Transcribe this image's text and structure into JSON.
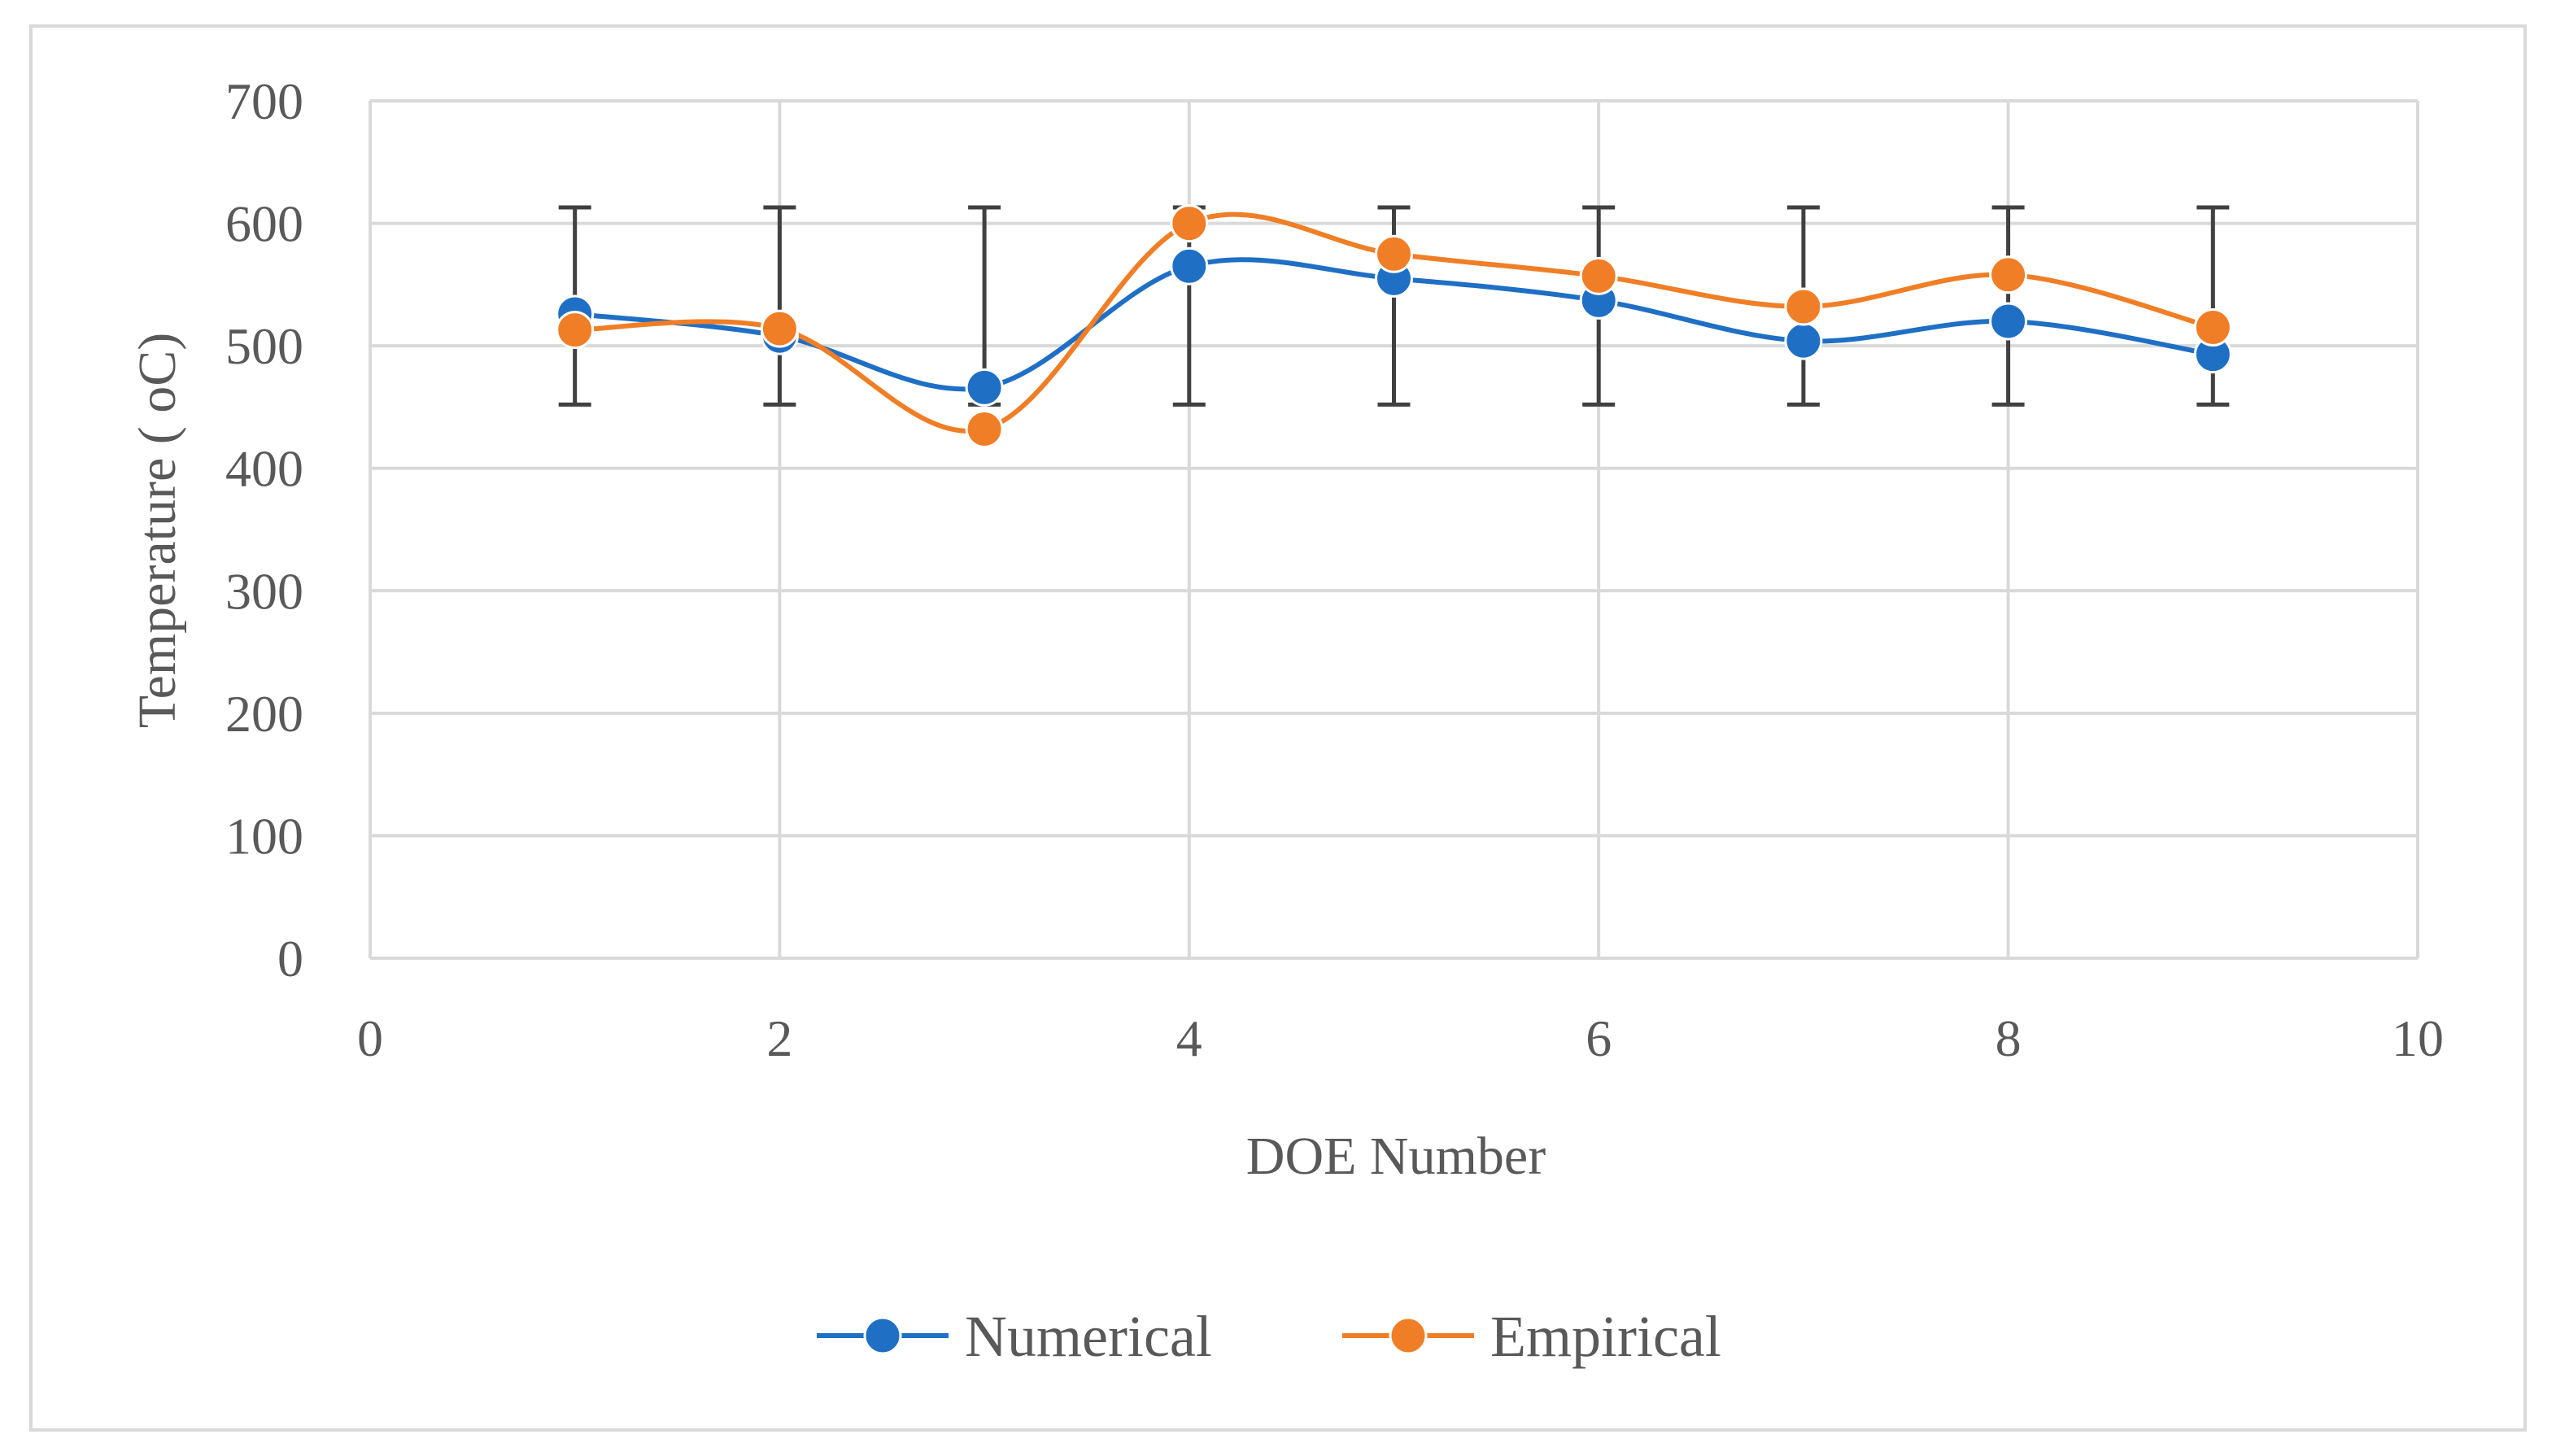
{
  "chart_data": {
    "type": "line",
    "title": "",
    "xlabel": "DOE Number",
    "ylabel": "Temperature ( oC)",
    "xlim": [
      0,
      10
    ],
    "ylim": [
      0,
      700
    ],
    "xticks": [
      "0",
      "2",
      "4",
      "6",
      "8",
      "10"
    ],
    "yticks": [
      "0",
      "100",
      "200",
      "300",
      "400",
      "500",
      "600",
      "700"
    ],
    "grid": true,
    "smooth": true,
    "legend_position": "bottom",
    "x": [
      1,
      2,
      3,
      4,
      5,
      6,
      7,
      8,
      9
    ],
    "series": [
      {
        "name": "Numerical",
        "color": "#1f6fc5",
        "values": [
          526,
          508,
          466,
          565,
          555,
          537,
          504,
          520,
          493
        ],
        "error_bars": {
          "color": "#404040",
          "lower": [
            452,
            452,
            452,
            452,
            452,
            452,
            452,
            452,
            452
          ],
          "upper": [
            613,
            613,
            613,
            613,
            613,
            613,
            613,
            613,
            613
          ]
        }
      },
      {
        "name": "Empirical",
        "color": "#f07e26",
        "values": [
          513,
          514,
          432,
          600,
          575,
          557,
          532,
          558,
          515
        ]
      }
    ]
  }
}
